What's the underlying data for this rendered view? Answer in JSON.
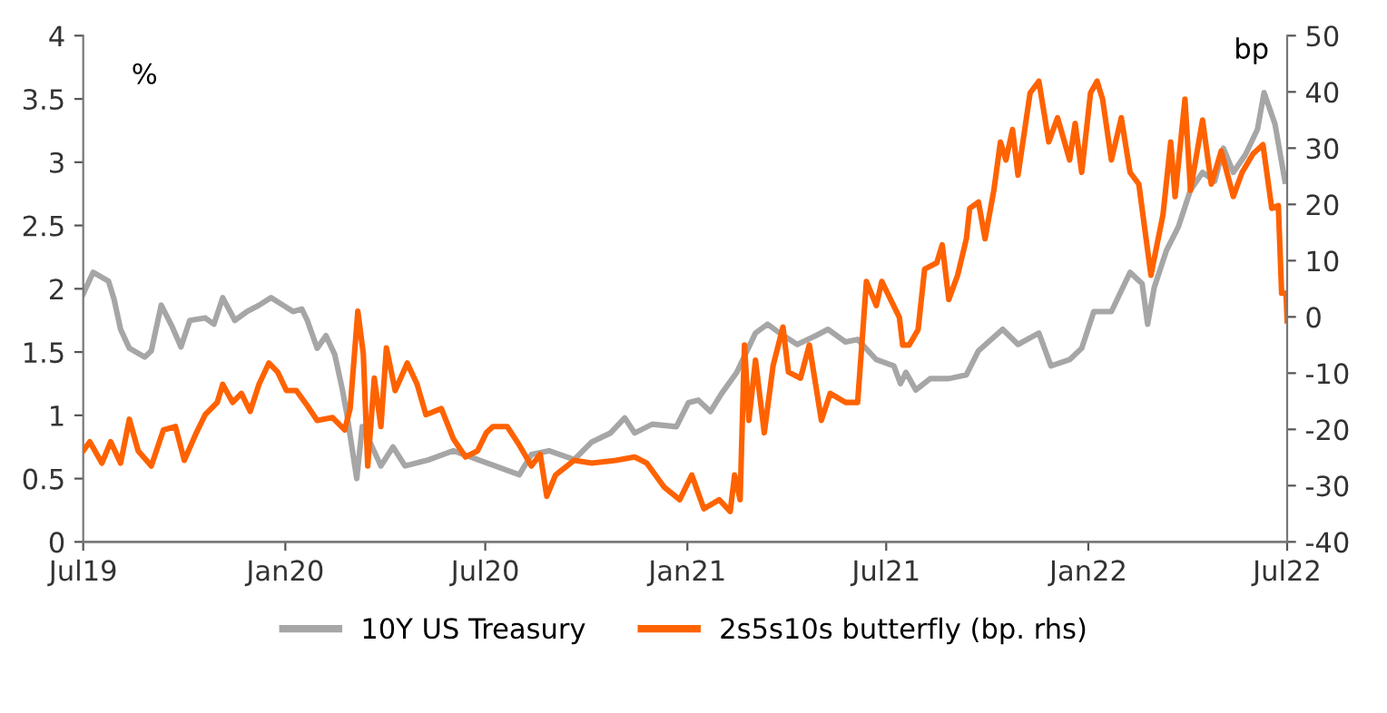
{
  "chart_data": {
    "type": "line",
    "ylabel": "%",
    "y2label": "bp",
    "xlim": [
      "2019-07-01",
      "2022-07-01"
    ],
    "xticks": [
      {
        "value": "2019-07-01",
        "label": "Jul19"
      },
      {
        "value": "2020-01-01",
        "label": "Jan20"
      },
      {
        "value": "2020-07-01",
        "label": "Jul20"
      },
      {
        "value": "2021-01-01",
        "label": "Jan21"
      },
      {
        "value": "2021-07-01",
        "label": "Jul21"
      },
      {
        "value": "2022-01-01",
        "label": "Jan22"
      },
      {
        "value": "2022-07-01",
        "label": "Jul22"
      }
    ],
    "ylim": [
      0,
      4
    ],
    "yticks": [
      0,
      0.5,
      1,
      1.5,
      2,
      2.5,
      3,
      3.5,
      4
    ],
    "y2lim": [
      -40,
      50
    ],
    "y2ticks": [
      -40,
      -30,
      -20,
      -10,
      0,
      10,
      20,
      30,
      40,
      50
    ],
    "grid": false,
    "legend": "bottom",
    "line_style": "solid",
    "marker": "none",
    "series": [
      {
        "name": "10Y US Treasury",
        "color": "#a6a6a6",
        "x": [
          "2019-07-01",
          "2019-07-10",
          "2019-07-24",
          "2019-07-29",
          "2019-08-04",
          "2019-08-12",
          "2019-08-26",
          "2019-09-01",
          "2019-09-10",
          "2019-09-20",
          "2019-09-28",
          "2019-10-06",
          "2019-10-20",
          "2019-10-28",
          "2019-11-05",
          "2019-11-16",
          "2019-11-27",
          "2019-12-08",
          "2019-12-19",
          "2019-12-30",
          "2020-01-08",
          "2020-01-16",
          "2020-01-21",
          "2020-01-30",
          "2020-02-07",
          "2020-02-15",
          "2020-02-22",
          "2020-02-26",
          "2020-03-06",
          "2020-03-11",
          "2020-03-19",
          "2020-03-28",
          "2020-04-08",
          "2020-04-19",
          "2020-05-11",
          "2020-06-02",
          "2020-06-18",
          "2020-06-24",
          "2020-07-10",
          "2020-08-01",
          "2020-08-12",
          "2020-08-28",
          "2020-09-20",
          "2020-10-06",
          "2020-10-23",
          "2020-11-05",
          "2020-11-14",
          "2020-11-30",
          "2020-12-22",
          "2021-01-02",
          "2021-01-11",
          "2021-01-22",
          "2021-02-01",
          "2021-02-15",
          "2021-03-04",
          "2021-03-15",
          "2021-03-26",
          "2021-04-11",
          "2021-04-28",
          "2021-05-09",
          "2021-05-25",
          "2021-06-05",
          "2021-06-22",
          "2021-07-08",
          "2021-07-14",
          "2021-07-19",
          "2021-07-28",
          "2021-08-10",
          "2021-08-27",
          "2021-09-12",
          "2021-09-23",
          "2021-10-15",
          "2021-10-29",
          "2021-11-17",
          "2021-11-28",
          "2021-12-15",
          "2021-12-26",
          "2022-01-06",
          "2022-01-22",
          "2022-02-08",
          "2022-02-19",
          "2022-02-24",
          "2022-03-02",
          "2022-03-13",
          "2022-03-24",
          "2022-04-04",
          "2022-04-15",
          "2022-04-26",
          "2022-05-04",
          "2022-05-13",
          "2022-05-24",
          "2022-06-04",
          "2022-06-10",
          "2022-06-20",
          "2022-06-29"
        ],
        "values": [
          1.96,
          2.13,
          2.06,
          1.92,
          1.68,
          1.53,
          1.46,
          1.51,
          1.87,
          1.7,
          1.54,
          1.75,
          1.77,
          1.72,
          1.93,
          1.75,
          1.82,
          1.87,
          1.93,
          1.87,
          1.82,
          1.84,
          1.75,
          1.53,
          1.63,
          1.48,
          1.2,
          1.01,
          0.5,
          0.91,
          0.77,
          0.6,
          0.75,
          0.6,
          0.65,
          0.72,
          0.67,
          0.65,
          0.6,
          0.53,
          0.69,
          0.72,
          0.65,
          0.79,
          0.86,
          0.98,
          0.86,
          0.93,
          0.91,
          1.1,
          1.12,
          1.03,
          1.17,
          1.34,
          1.65,
          1.72,
          1.65,
          1.56,
          1.63,
          1.68,
          1.58,
          1.6,
          1.44,
          1.39,
          1.25,
          1.34,
          1.2,
          1.29,
          1.29,
          1.32,
          1.51,
          1.68,
          1.56,
          1.65,
          1.39,
          1.44,
          1.53,
          1.82,
          1.82,
          2.13,
          2.04,
          1.72,
          2.01,
          2.3,
          2.49,
          2.78,
          2.92,
          2.85,
          3.11,
          2.92,
          3.06,
          3.26,
          3.55,
          3.3,
          2.85
        ]
      },
      {
        "name": "2s5s10s butterfly (bp. rhs)",
        "color": "#ff6200",
        "axis": "y2",
        "x": [
          "2019-07-01",
          "2019-07-07",
          "2019-07-18",
          "2019-07-26",
          "2019-08-04",
          "2019-08-12",
          "2019-08-20",
          "2019-09-01",
          "2019-09-12",
          "2019-09-23",
          "2019-10-01",
          "2019-10-12",
          "2019-10-20",
          "2019-10-31",
          "2019-11-05",
          "2019-11-14",
          "2019-11-22",
          "2019-11-30",
          "2019-12-08",
          "2019-12-17",
          "2019-12-25",
          "2020-01-02",
          "2020-01-11",
          "2020-01-21",
          "2020-01-30",
          "2020-02-13",
          "2020-02-24",
          "2020-02-29",
          "2020-03-07",
          "2020-03-12",
          "2020-03-16",
          "2020-03-22",
          "2020-03-28",
          "2020-04-02",
          "2020-04-10",
          "2020-04-21",
          "2020-04-30",
          "2020-05-08",
          "2020-05-22",
          "2020-06-02",
          "2020-06-13",
          "2020-06-24",
          "2020-07-02",
          "2020-07-08",
          "2020-07-21",
          "2020-08-01",
          "2020-08-12",
          "2020-08-20",
          "2020-08-26",
          "2020-09-03",
          "2020-09-20",
          "2020-10-06",
          "2020-10-28",
          "2020-11-14",
          "2020-11-25",
          "2020-12-11",
          "2020-12-25",
          "2021-01-05",
          "2021-01-16",
          "2021-01-30",
          "2021-02-09",
          "2021-02-13",
          "2021-02-18",
          "2021-02-22",
          "2021-02-26",
          "2021-03-04",
          "2021-03-12",
          "2021-03-20",
          "2021-03-29",
          "2021-04-03",
          "2021-04-14",
          "2021-04-22",
          "2021-05-03",
          "2021-05-11",
          "2021-05-25",
          "2021-06-05",
          "2021-06-13",
          "2021-06-22",
          "2021-06-27",
          "2021-07-05",
          "2021-07-13",
          "2021-07-16",
          "2021-07-22",
          "2021-07-30",
          "2021-08-05",
          "2021-08-16",
          "2021-08-21",
          "2021-08-27",
          "2021-09-04",
          "2021-09-12",
          "2021-09-15",
          "2021-09-23",
          "2021-09-29",
          "2021-10-07",
          "2021-10-13",
          "2021-10-18",
          "2021-10-24",
          "2021-10-29",
          "2021-11-09",
          "2021-11-17",
          "2021-11-26",
          "2021-12-04",
          "2021-12-15",
          "2021-12-20",
          "2021-12-26",
          "2022-01-03",
          "2022-01-09",
          "2022-01-14",
          "2022-01-22",
          "2022-01-31",
          "2022-02-08",
          "2022-02-16",
          "2022-02-27",
          "2022-03-10",
          "2022-03-17",
          "2022-03-21",
          "2022-03-30",
          "2022-04-04",
          "2022-04-15",
          "2022-04-23",
          "2022-05-02",
          "2022-05-13",
          "2022-05-21",
          "2022-05-31",
          "2022-06-09",
          "2022-06-17",
          "2022-06-23",
          "2022-06-26",
          "2022-06-30",
          "2022-07-01"
        ],
        "values": [
          -23.8,
          -22.2,
          -26.0,
          -22.2,
          -26.0,
          -18.2,
          -23.8,
          -26.5,
          -20.1,
          -19.5,
          -25.5,
          -20.6,
          -17.4,
          -15.2,
          -12.0,
          -15.2,
          -13.6,
          -16.8,
          -12.0,
          -8.2,
          -9.8,
          -13.1,
          -13.1,
          -15.8,
          -18.4,
          -17.9,
          -20.1,
          -16.3,
          1.0,
          -6.6,
          -26.5,
          -10.9,
          -19.5,
          -5.5,
          -13.1,
          -8.2,
          -12.0,
          -17.4,
          -16.3,
          -21.7,
          -24.9,
          -23.8,
          -20.6,
          -19.5,
          -19.5,
          -22.8,
          -26.5,
          -24.4,
          -31.9,
          -28.1,
          -25.5,
          -26.0,
          -25.5,
          -24.9,
          -26.0,
          -30.3,
          -32.5,
          -28.1,
          -34.1,
          -32.5,
          -34.6,
          -28.1,
          -32.5,
          -5.0,
          -18.4,
          -7.7,
          -20.6,
          -8.7,
          -1.8,
          -9.8,
          -10.9,
          -5.0,
          -18.4,
          -13.6,
          -15.2,
          -15.2,
          6.3,
          2.0,
          6.3,
          3.1,
          -0.1,
          -5.0,
          -5.0,
          -2.3,
          8.5,
          9.6,
          12.8,
          3.1,
          7.4,
          13.9,
          19.3,
          20.4,
          13.9,
          22.5,
          31.1,
          27.9,
          33.3,
          25.2,
          39.8,
          41.9,
          31.1,
          35.4,
          27.9,
          34.4,
          25.7,
          39.8,
          41.9,
          38.7,
          27.9,
          35.4,
          25.7,
          23.6,
          7.4,
          18.2,
          31.1,
          21.4,
          38.7,
          22.5,
          35.0,
          23.6,
          29.5,
          21.4,
          25.7,
          29.0,
          30.6,
          19.3,
          19.8,
          4.2,
          4.2,
          -0.7
        ]
      }
    ]
  }
}
